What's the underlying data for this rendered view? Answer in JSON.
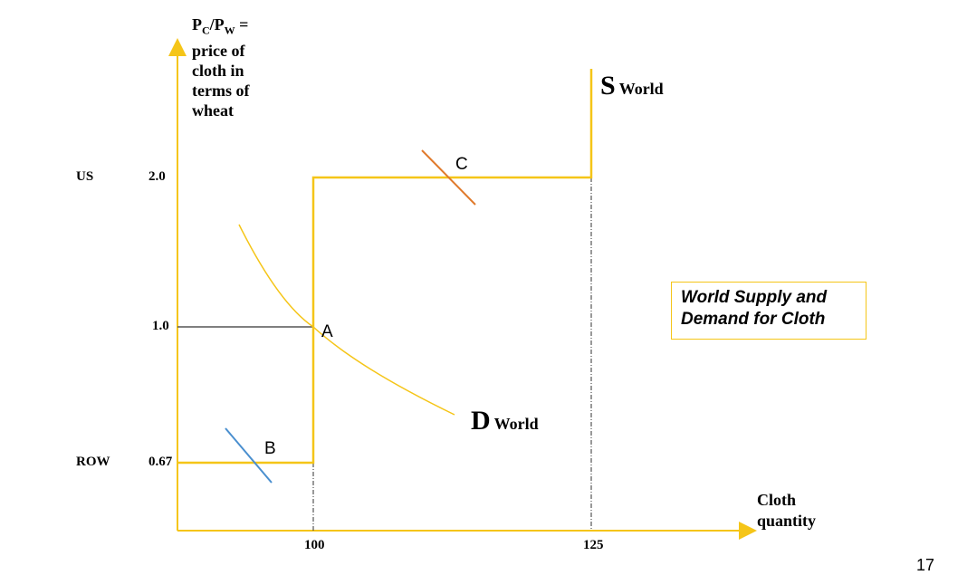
{
  "y_axis_label": {
    "main": "P",
    "sub_c": "C",
    "slash": "/P",
    "sub_w": "W",
    "eq": " =",
    "lines": [
      "price of",
      "cloth in",
      "terms of",
      "wheat"
    ]
  },
  "x_axis_label": [
    "Cloth",
    "quantity"
  ],
  "y_ticks": {
    "us_country": "US",
    "us_value": "2.0",
    "mid_value": "1.0",
    "row_country": "ROW",
    "row_value": "0.67"
  },
  "x_ticks": [
    "100",
    "125"
  ],
  "points": {
    "a": "A",
    "b": "B",
    "c": "C"
  },
  "supply_label": {
    "letter": "S",
    "sub": "World"
  },
  "demand_label": {
    "letter": "D",
    "sub": "World"
  },
  "title": [
    "World Supply and",
    "Demand for Cloth"
  ],
  "page_number": "17",
  "colors": {
    "axis": "#f5c518",
    "supply": "#f5c518",
    "demand": "#f5c518",
    "line_c": "#e07a2c",
    "line_b": "#4a8fcf",
    "ref_line": "#555555"
  }
}
